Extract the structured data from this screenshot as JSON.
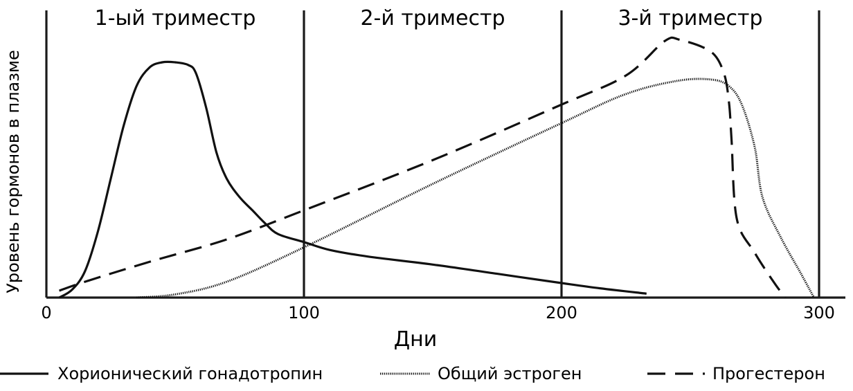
{
  "chart_data": {
    "type": "line",
    "title": "",
    "xlabel": "Дни",
    "ylabel": "Уровень гормонов в плазме",
    "xlim": [
      0,
      300
    ],
    "ylim": [
      0,
      100
    ],
    "x_ticks": [
      "0",
      "100",
      "200",
      "300"
    ],
    "regions": [
      {
        "label": "1-ый триместр",
        "x_start": 0,
        "x_end": 100
      },
      {
        "label": "2-й триместр",
        "x_start": 100,
        "x_end": 200
      },
      {
        "label": "3-й триместр",
        "x_start": 200,
        "x_end": 300
      }
    ],
    "series": [
      {
        "name": "Хорионический гонадотропин",
        "style": "solid",
        "points": [
          [
            5,
            0
          ],
          [
            10,
            3
          ],
          [
            15,
            10
          ],
          [
            20,
            25
          ],
          [
            25,
            45
          ],
          [
            30,
            65
          ],
          [
            35,
            80
          ],
          [
            40,
            87
          ],
          [
            45,
            89
          ],
          [
            50,
            89
          ],
          [
            55,
            88
          ],
          [
            58,
            85
          ],
          [
            62,
            72
          ],
          [
            66,
            55
          ],
          [
            70,
            45
          ],
          [
            75,
            38
          ],
          [
            80,
            33
          ],
          [
            85,
            28
          ],
          [
            90,
            24
          ],
          [
            100,
            21
          ],
          [
            110,
            18
          ],
          [
            125,
            15.5
          ],
          [
            150,
            12.5
          ],
          [
            175,
            9
          ],
          [
            200,
            5.5
          ],
          [
            215,
            3.5
          ],
          [
            233,
            1.5
          ]
        ]
      },
      {
        "name": "Общий эстроген",
        "style": "dotted",
        "points": [
          [
            35,
            0
          ],
          [
            50,
            1.2
          ],
          [
            70,
            6
          ],
          [
            100,
            19
          ],
          [
            150,
            43
          ],
          [
            200,
            66
          ],
          [
            225,
            77
          ],
          [
            245,
            82
          ],
          [
            258,
            82.5
          ],
          [
            265,
            80
          ],
          [
            270,
            73
          ],
          [
            275,
            57
          ],
          [
            278,
            38
          ],
          [
            285,
            23
          ],
          [
            293,
            9
          ],
          [
            298,
            0
          ]
        ]
      },
      {
        "name": "Прогестерон",
        "style": "dashed",
        "points": [
          [
            5,
            2.6
          ],
          [
            15,
            6
          ],
          [
            40,
            13.5
          ],
          [
            70,
            22
          ],
          [
            100,
            33
          ],
          [
            150,
            52
          ],
          [
            200,
            73
          ],
          [
            225,
            84
          ],
          [
            240,
            97
          ],
          [
            246,
            97.5
          ],
          [
            258,
            93
          ],
          [
            263,
            85
          ],
          [
            265,
            74
          ],
          [
            266,
            60
          ],
          [
            268,
            30
          ],
          [
            275,
            17
          ],
          [
            283,
            5
          ],
          [
            287,
            0
          ]
        ]
      }
    ]
  }
}
